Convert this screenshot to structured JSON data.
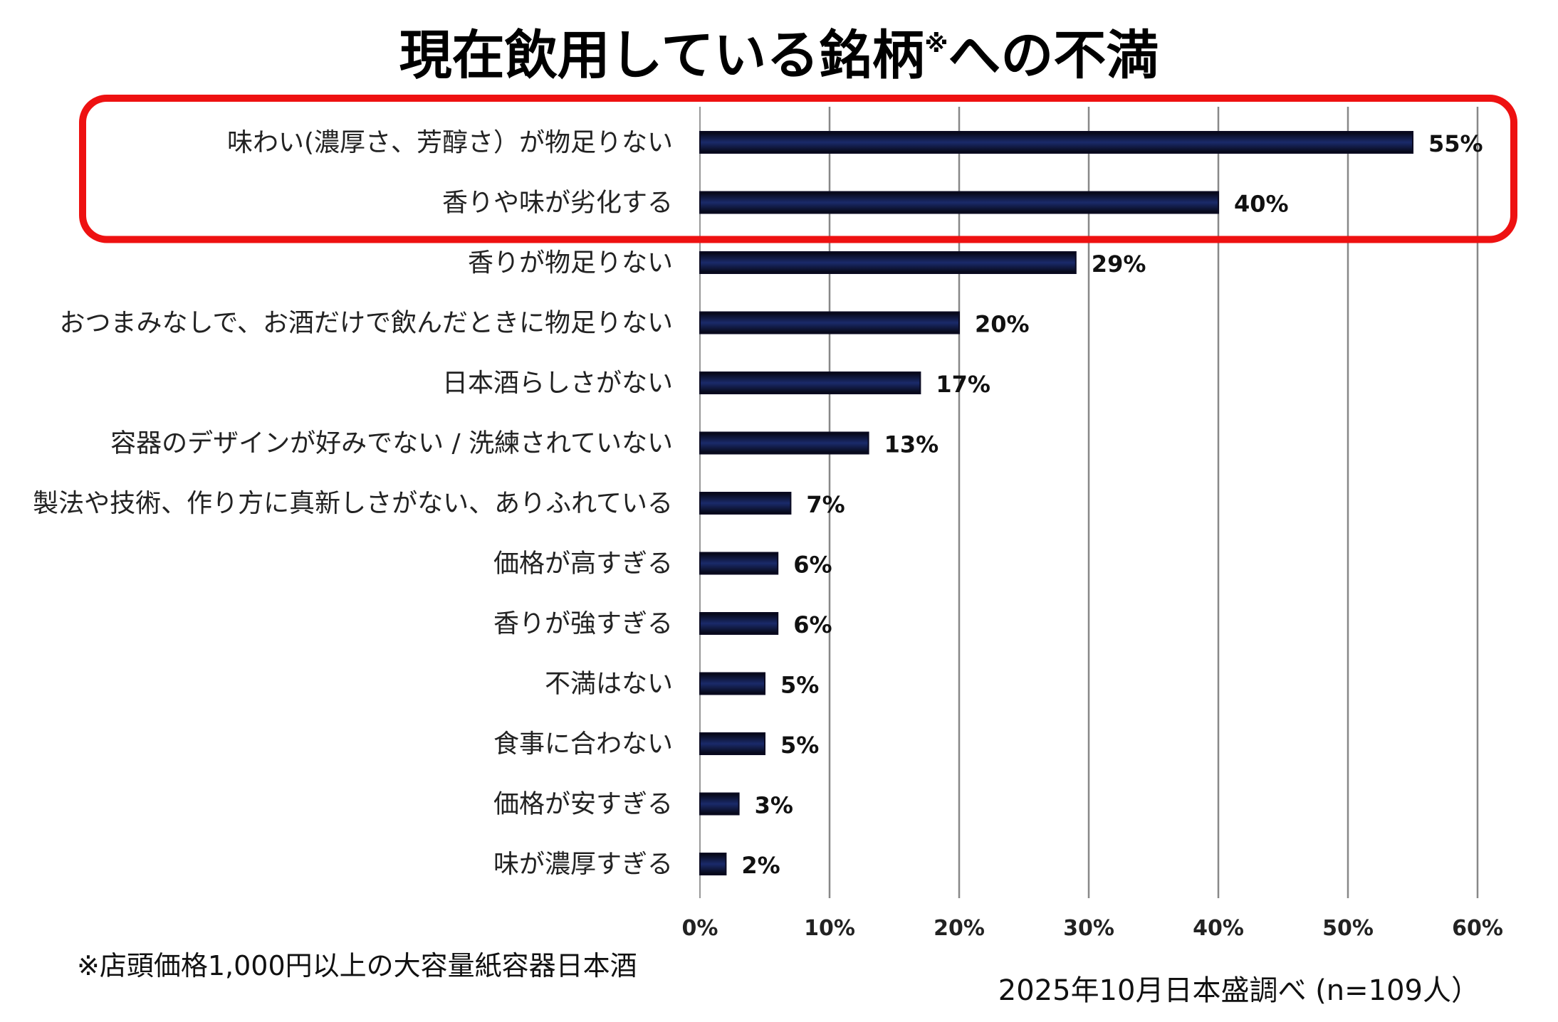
{
  "title": {
    "main": "現在飲用している銘柄",
    "mark": "※",
    "rest": "への不満"
  },
  "colors": {
    "bar": "#0b0b22",
    "bar_glow": "#1a2a6a",
    "highlight": "#ee1111",
    "grid": "#888888",
    "axis": "#999999"
  },
  "chart_data": {
    "type": "bar",
    "orientation": "horizontal",
    "categories": [
      "味わい(濃厚さ、芳醇さ）が物足りない",
      "香りや味が劣化する",
      "香りが物足りない",
      "おつまみなしで、お酒だけで飲んだときに物足りない",
      "日本酒らしさがない",
      "容器のデザインが好みでない / 洗練されていない",
      "製法や技術、作り方に真新しさがない、ありふれている",
      "価格が高すぎる",
      "香りが強すぎる",
      "不満はない",
      "食事に合わない",
      "価格が安すぎる",
      "味が濃厚すぎる"
    ],
    "values": [
      55,
      40,
      29,
      20,
      17,
      13,
      7,
      6,
      6,
      5,
      5,
      3,
      2
    ],
    "value_labels": [
      "55%",
      "40%",
      "29%",
      "20%",
      "17%",
      "13%",
      "7%",
      "6%",
      "6%",
      "5%",
      "5%",
      "3%",
      "2%"
    ],
    "xlim": [
      0,
      60
    ],
    "xticks": [
      0,
      10,
      20,
      30,
      40,
      50,
      60
    ],
    "xtick_labels": [
      "0%",
      "10%",
      "20%",
      "30%",
      "40%",
      "50%",
      "60%"
    ],
    "grid": true,
    "highlighted_categories": [
      0,
      1
    ]
  },
  "footnote": "※店頭価格1,000円以上の大容量紙容器日本酒",
  "source": "2025年10月日本盛調べ (n=109人）"
}
